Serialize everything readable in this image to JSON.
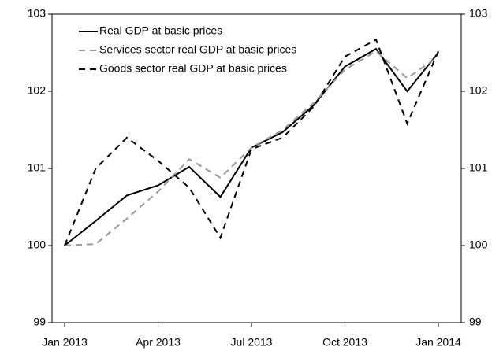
{
  "chart_data": {
    "type": "line",
    "categories": [
      "Jan 2013",
      null,
      null,
      "Apr 2013",
      null,
      null,
      "Jul 2013",
      null,
      null,
      "Oct 2013",
      null,
      null,
      "Jan 2014"
    ],
    "series": [
      {
        "name": "Real GDP at basic prices",
        "color": "#000000",
        "dash": "solid",
        "values": [
          100,
          100.32,
          100.65,
          100.78,
          101.02,
          100.63,
          101.27,
          101.47,
          101.82,
          102.32,
          102.55,
          102.0,
          102.5
        ]
      },
      {
        "name": "Services sector real GDP at basic prices",
        "color": "#999999",
        "dash": "dashed",
        "values": [
          100,
          100.02,
          100.35,
          100.7,
          101.12,
          100.88,
          101.27,
          101.5,
          101.85,
          102.28,
          102.52,
          102.17,
          102.45
        ]
      },
      {
        "name": "Goods sector real GDP at basic prices",
        "color": "#000000",
        "dash": "dashed",
        "values": [
          100,
          101.0,
          101.4,
          101.1,
          100.75,
          100.1,
          101.25,
          101.4,
          101.8,
          102.45,
          102.67,
          101.58,
          102.52
        ]
      }
    ],
    "ylim": [
      99,
      103
    ],
    "yticks": [
      99,
      100,
      101,
      102,
      103
    ],
    "y2lim": [
      99,
      103
    ],
    "y2ticks": [
      99,
      100,
      101,
      102,
      103
    ],
    "grid": false,
    "legend": "upper left"
  }
}
